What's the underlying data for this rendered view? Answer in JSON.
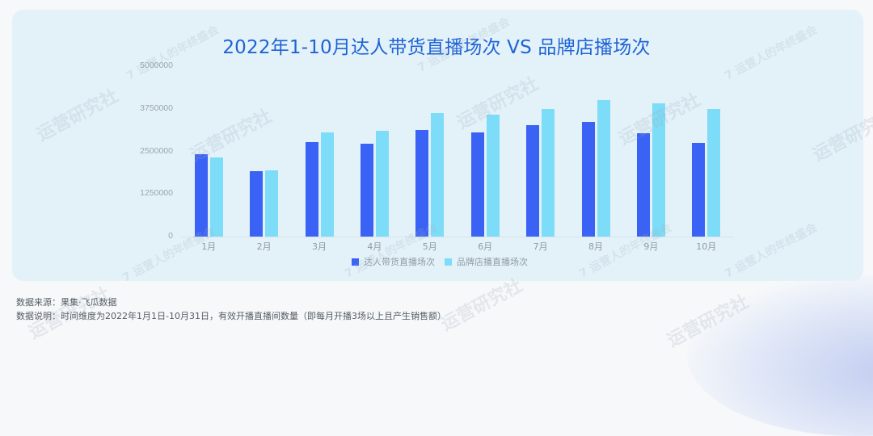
{
  "chart_data": {
    "type": "bar",
    "title": "2022年1-10月达人带货直播场次 VS 品牌店播场次",
    "xlabel": "",
    "ylabel": "",
    "ylim": [
      0,
      5000000
    ],
    "yticks": [
      "0",
      "1250000",
      "2500000",
      "3750000",
      "5000000"
    ],
    "categories": [
      "1月",
      "2月",
      "3月",
      "4月",
      "5月",
      "6月",
      "7月",
      "8月",
      "9月",
      "10月"
    ],
    "series": [
      {
        "name": "达人带货直播场次",
        "color": "#3a62f5",
        "values": [
          2420000,
          1920000,
          2770000,
          2720000,
          3130000,
          3060000,
          3270000,
          3360000,
          3030000,
          2750000
        ]
      },
      {
        "name": "品牌店播直播场次",
        "color": "#7ddcf8",
        "values": [
          2320000,
          1940000,
          3060000,
          3100000,
          3620000,
          3580000,
          3740000,
          4010000,
          3910000,
          3750000
        ]
      }
    ],
    "grid": false,
    "legend_position": "bottom"
  },
  "footnotes": {
    "source": "数据来源：果集·飞瓜数据",
    "note": "数据说明：时间维度为2022年1月1日-10月31日，有效开播直播间数量（即每月开播3场以上且产生销售额）"
  },
  "watermark": {
    "text": "运营研究社",
    "badge": "7 运营人的年终盛会"
  }
}
